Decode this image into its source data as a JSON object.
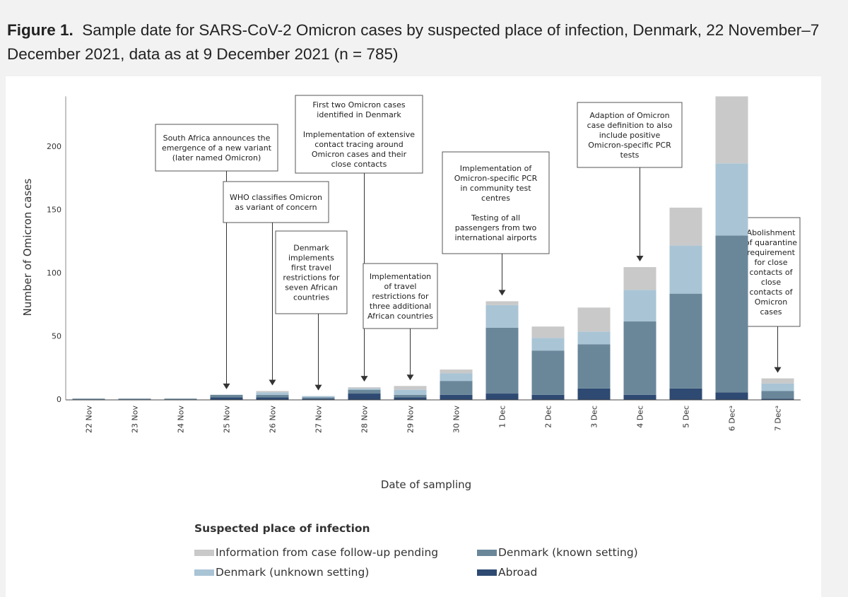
{
  "caption": {
    "figure_label": "Figure 1.",
    "text": "Sample date for SARS-CoV-2 Omicron cases by suspected place of infection, Denmark, 22 November–7 December 2021, data as at 9 December 2021 (n = 785)"
  },
  "colors": {
    "abroad": "#2e4a72",
    "dk_known": "#6a879a",
    "dk_unknown": "#a9c4d5",
    "pending": "#c9c9c9"
  },
  "chart_data": {
    "type": "bar",
    "stacked": true,
    "xlabel": "Date of sampling",
    "ylabel": "Number of Omicron cases",
    "ylim": [
      0,
      240
    ],
    "yticks": [
      0,
      50,
      100,
      150,
      200
    ],
    "grid": false,
    "legend_placement": "bottom",
    "categories": [
      "22 Nov",
      "23 Nov",
      "24 Nov",
      "25 Nov",
      "26 Nov",
      "27 Nov",
      "28 Nov",
      "29 Nov",
      "30 Nov",
      "1 Dec",
      "2 Dec",
      "3 Dec",
      "4 Dec",
      "5 Dec",
      "6 Decᵃ",
      "7 Decᵃ"
    ],
    "series": [
      {
        "name": "Abroad",
        "color_key": "abroad",
        "values": [
          0,
          0,
          0,
          2,
          2,
          1,
          5,
          2,
          4,
          5,
          4,
          9,
          4,
          9,
          6,
          1
        ]
      },
      {
        "name": "Denmark (known setting)",
        "color_key": "dk_known",
        "values": [
          1,
          1,
          1,
          2,
          2,
          1,
          3,
          2,
          11,
          52,
          35,
          35,
          58,
          75,
          124,
          6
        ]
      },
      {
        "name": "Denmark (unknown setting)",
        "color_key": "dk_unknown",
        "values": [
          0,
          0,
          0,
          0,
          2,
          1,
          1,
          4,
          6,
          18,
          10,
          10,
          25,
          38,
          57,
          6
        ]
      },
      {
        "name": "Information from case follow-up pending",
        "color_key": "pending",
        "values": [
          0,
          0,
          0,
          0,
          1,
          0,
          1,
          3,
          3,
          3,
          9,
          19,
          18,
          30,
          53,
          4
        ]
      }
    ],
    "annotations": [
      {
        "category": "25 Nov",
        "lines": [
          "South Africa  announces the",
          "emergence of a new variant",
          "(later named Omicron)"
        ]
      },
      {
        "category": "26 Nov",
        "lines": [
          "WHO classifies Omicron",
          "as variant of concern"
        ]
      },
      {
        "category": "27 Nov",
        "lines": [
          "Denmark",
          "implements",
          "first travel",
          "restrictions for",
          "seven African",
          "countries"
        ]
      },
      {
        "category": "28 Nov",
        "lines": [
          "First two Omicron cases",
          "identified in Denmark",
          "",
          "Implementation of extensive",
          "contact tracing around",
          "Omicron cases and their",
          "close contacts"
        ]
      },
      {
        "category": "29 Nov",
        "lines": [
          "Implementation",
          "of travel",
          "restrictions for",
          "three additional",
          "African countries"
        ]
      },
      {
        "category": "1 Dec",
        "lines": [
          "Implementation of",
          "Omicron-specific PCR",
          "in community test",
          "centres",
          "",
          "Testing of all",
          "passengers from two",
          "international airports"
        ]
      },
      {
        "category": "4 Dec",
        "lines": [
          "Adaption of Omicron",
          "case definition to also",
          "include positive",
          "Omicron-specific PCR",
          "tests"
        ]
      },
      {
        "category": "7 Decᵃ",
        "lines": [
          "Abolishment",
          "of quarantine",
          "requirement",
          "for close",
          "contacts of",
          "close",
          "contacts of",
          "Omicron",
          "cases"
        ]
      }
    ],
    "legend": {
      "title": "Suspected place of infection",
      "order": [
        "Information from case follow-up pending",
        "Denmark (known setting)",
        "Denmark (unknown setting)",
        "Abroad"
      ]
    }
  }
}
